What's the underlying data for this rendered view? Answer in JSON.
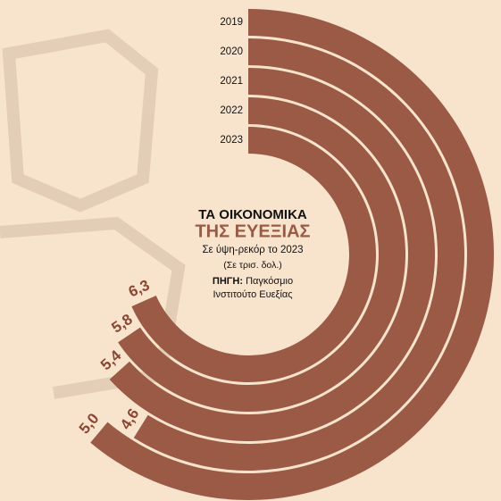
{
  "chart_data": {
    "type": "radial-bar",
    "title": "ΤΑ ΟΙΚΟΝΟΜΙΚΑ",
    "subtitle": "ΤΗΣ ΕΥΕΞΙΑΣ",
    "description": "Σε ύψη-ρεκόρ το 2023",
    "unit_note": "(Σε τρισ. δολ.)",
    "source_label": "ΠΗΓΗ:",
    "source_lines": [
      "Παγκόσμιο",
      "Ινστιτούτο Ευεξίας"
    ],
    "categories": [
      "2019",
      "2020",
      "2021",
      "2022",
      "2023"
    ],
    "values": [
      5.0,
      4.6,
      5.4,
      5.8,
      6.3
    ],
    "value_labels": [
      "5,0",
      "4,6",
      "5,4",
      "5,8",
      "6,3"
    ],
    "color": "#9b5a45"
  }
}
